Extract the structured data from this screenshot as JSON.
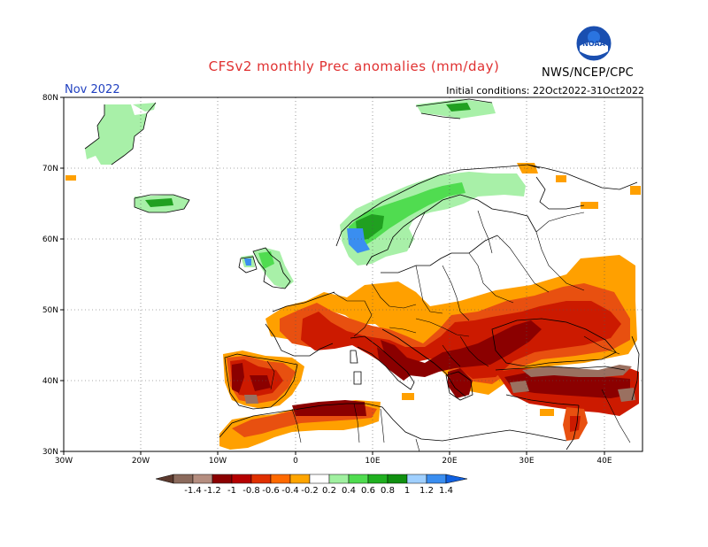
{
  "header": {
    "title": "CFSv2 monthly Prec anomalies (mm/day)",
    "agency": "NWS/NCEP/CPC",
    "month": "Nov 2022",
    "initial_conditions": "Initial conditions: 22Oct2022-31Oct2022",
    "logo_text": "NOAA"
  },
  "axes": {
    "lat_labels": [
      "80N",
      "70N",
      "60N",
      "50N",
      "40N",
      "30N"
    ],
    "lon_labels": [
      "30W",
      "20W",
      "10W",
      "0",
      "10E",
      "20E",
      "30E",
      "40E"
    ]
  },
  "colorbar": {
    "labels": [
      "-1.4",
      "-1.2",
      "-1",
      "-0.8",
      "-0.6",
      "-0.4",
      "-0.2",
      "0.2",
      "0.4",
      "0.6",
      "0.8",
      "1",
      "1.2",
      "1.4"
    ],
    "colors": [
      "#5c3a2e",
      "#8b6a5c",
      "#b58e80",
      "#8b0000",
      "#b50000",
      "#e03000",
      "#ff6a00",
      "#ffa500",
      "#ffffff",
      "#a0f0a0",
      "#50dc50",
      "#20b020",
      "#109010",
      "#a0d0ff",
      "#3a8ef0",
      "#1060e0"
    ]
  },
  "colors": {
    "dry_strong": "#8b0000",
    "dry_mod": "#cc1a00",
    "dry_light": "#e85010",
    "dry_weak": "#ffa000",
    "dry_extreme": "#9a7060",
    "wet_light": "#a8f0a8",
    "wet_mod": "#40d040",
    "wet_strong": "#20a020",
    "wet_blue": "#3a8ef0"
  }
}
